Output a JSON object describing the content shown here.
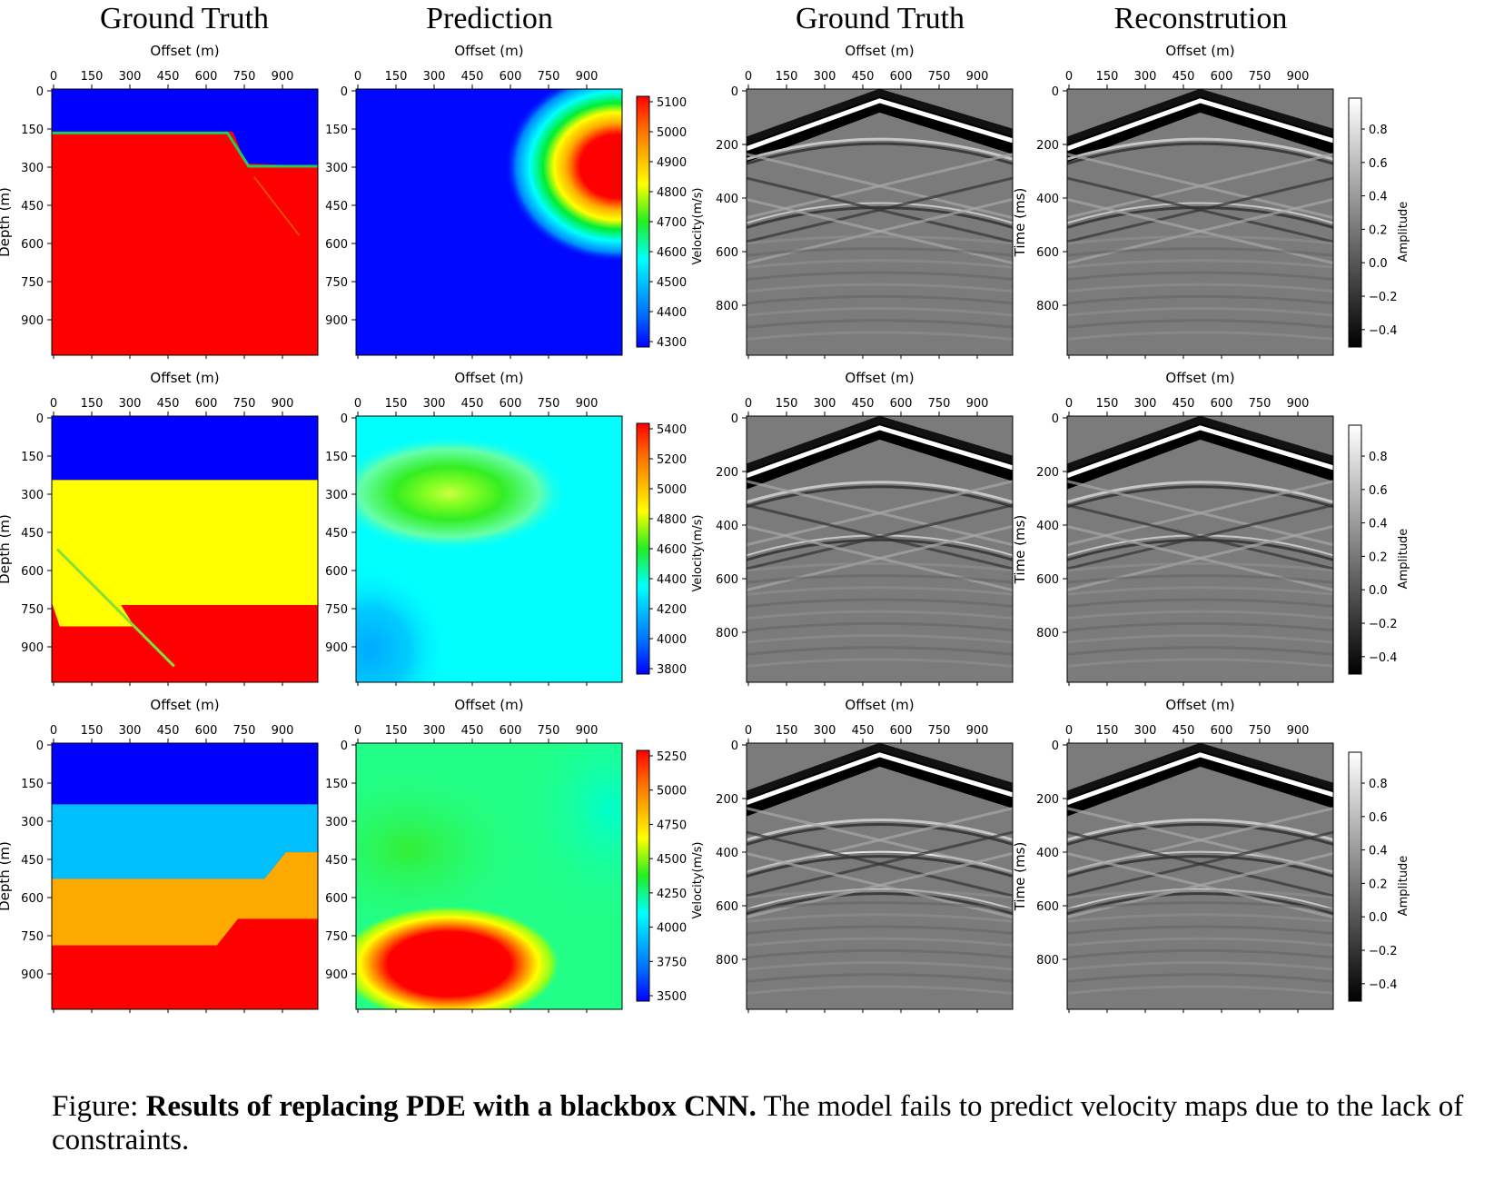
{
  "column_titles": [
    "Ground Truth",
    "Prediction",
    "Ground Truth",
    "Reconstrution"
  ],
  "axis_labels": {
    "offset": "Offset (m)",
    "depth": "Depth (m)",
    "time": "Time (ms)",
    "velocity": "Velocity(m/s)",
    "amplitude": "Amplitude"
  },
  "offset_ticks": [
    "0",
    "150",
    "300",
    "450",
    "600",
    "750",
    "900"
  ],
  "depth_ticks": [
    "0",
    "150",
    "300",
    "450",
    "600",
    "750",
    "900"
  ],
  "time_ticks": [
    "0",
    "200",
    "400",
    "600",
    "800"
  ],
  "amplitude_ticks": [
    "0.8",
    "0.6",
    "0.4",
    "0.2",
    "0.0",
    "−0.2",
    "−0.4"
  ],
  "velocity_colorbars": [
    {
      "ticks": [
        "5100",
        "5000",
        "4900",
        "4800",
        "4700",
        "4600",
        "4500",
        "4400",
        "4300"
      ]
    },
    {
      "ticks": [
        "5400",
        "5200",
        "5000",
        "4800",
        "4600",
        "4400",
        "4200",
        "4000",
        "3800"
      ]
    },
    {
      "ticks": [
        "5250",
        "5000",
        "4750",
        "4500",
        "4250",
        "4000",
        "3750",
        "3500"
      ]
    }
  ],
  "colors": {
    "blue": "#0000ff",
    "red": "#ff0000",
    "yellow": "#ffff00",
    "lightblue": "#00bfff",
    "orange": "#ffaa00",
    "cyan": "#00ffff",
    "green": "#22dd22"
  },
  "caption": {
    "prefix": "Figure: ",
    "bold": "Results of replacing PDE with a blackbox CNN.",
    "rest": " The model fails to predict velocity maps due to the lack of constraints."
  }
}
